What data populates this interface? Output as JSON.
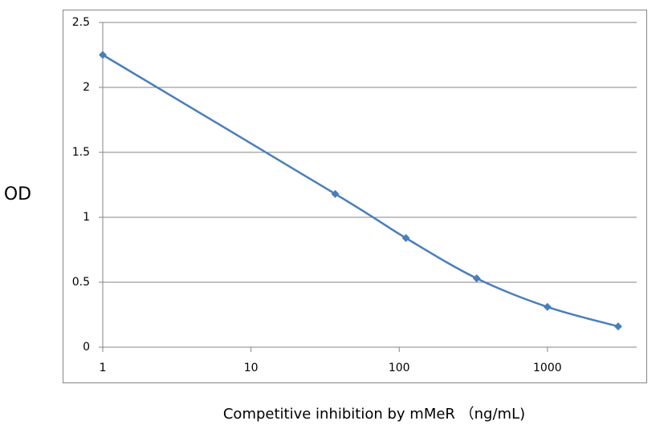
{
  "chart_data": {
    "type": "line",
    "y_label": "OD",
    "x_label": "Competitive inhibition by mMeR （ng/mL)",
    "x": [
      1,
      37,
      111,
      333,
      1000,
      3000
    ],
    "series": [
      {
        "name": "OD",
        "color": "#4a7ebb",
        "values": [
          2.25,
          1.18,
          0.84,
          0.53,
          0.31,
          0.16
        ]
      }
    ],
    "xscale": "log",
    "xlim": [
      1,
      4000
    ],
    "xticks": [
      1,
      10,
      100,
      1000
    ],
    "ylim": [
      0,
      2.5
    ],
    "yticks": [
      0,
      0.5,
      1,
      1.5,
      2,
      2.5
    ],
    "grid": true
  }
}
